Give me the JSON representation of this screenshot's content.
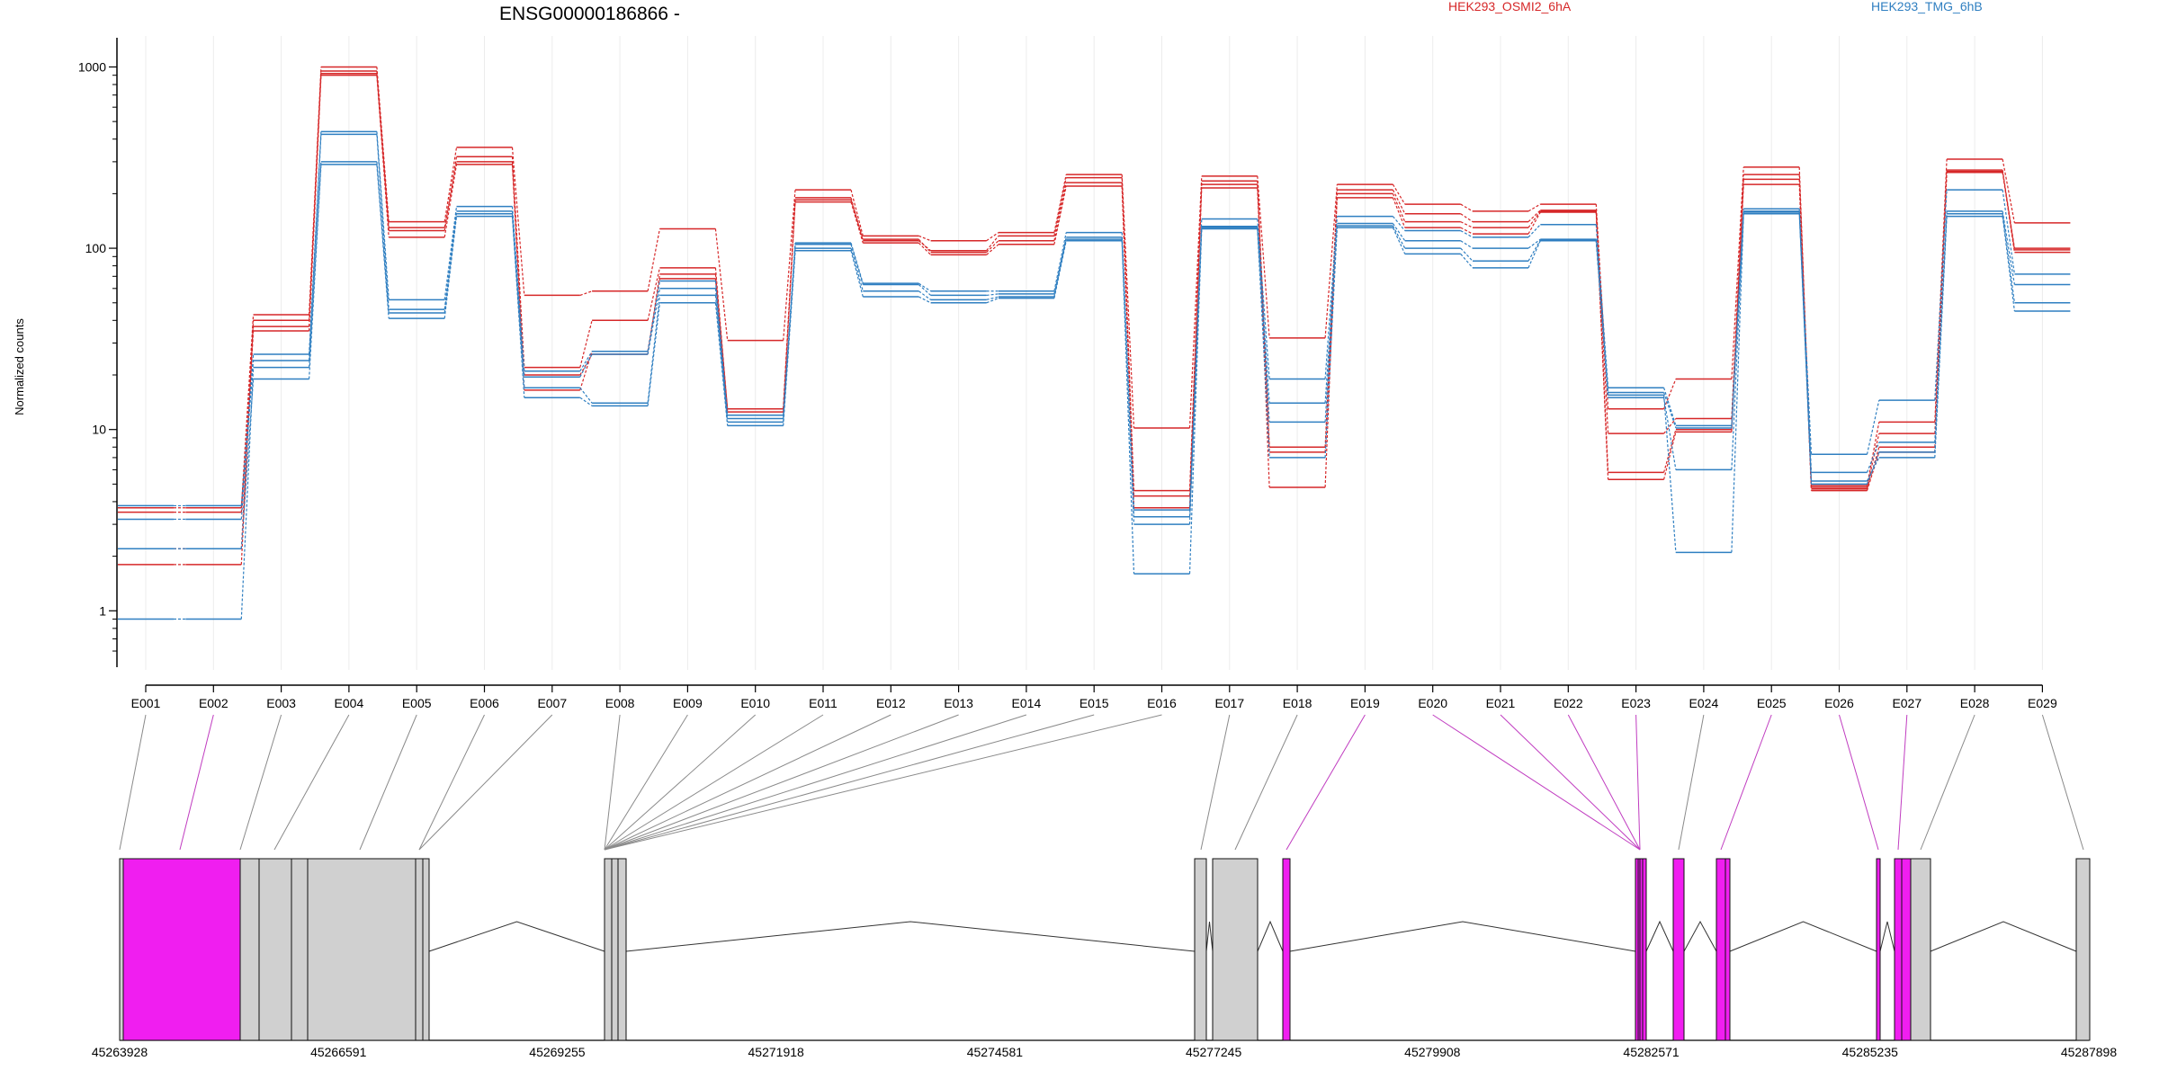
{
  "chart_data": {
    "type": "line",
    "title": "ENSG00000186866 -",
    "ylabel": "Normalized counts",
    "yscale": "log",
    "ylim": [
      0.5,
      1400
    ],
    "yticks": [
      "1",
      "10",
      "100",
      "1000"
    ],
    "grid": "vertical",
    "categories": [
      "E001",
      "E002",
      "E003",
      "E004",
      "E005",
      "E006",
      "E007",
      "E008",
      "E009",
      "E010",
      "E011",
      "E012",
      "E013",
      "E014",
      "E015",
      "E016",
      "E017",
      "E018",
      "E019",
      "E020",
      "E021",
      "E022",
      "E023",
      "E024",
      "E025",
      "E026",
      "E027",
      "E028",
      "E029"
    ],
    "legend": [
      {
        "label": "HEK293_OSMI2_6hA",
        "color": "#d62728"
      },
      {
        "label": "HEK293_TMG_6hB",
        "color": "#2f7fc1"
      }
    ],
    "series": [
      {
        "group": 0,
        "values": [
          3.7,
          3.7,
          43,
          1000,
          140,
          360,
          55,
          58,
          128,
          31,
          210,
          117,
          110,
          122,
          255,
          10.2,
          250,
          32,
          225,
          175,
          160,
          175,
          13,
          19,
          280,
          4.9,
          11,
          310,
          138
        ]
      },
      {
        "group": 0,
        "values": [
          3.5,
          3.5,
          37,
          950,
          125,
          320,
          22,
          40,
          78,
          13,
          190,
          110,
          97,
          117,
          245,
          4.6,
          235,
          8,
          210,
          155,
          140,
          162,
          9.5,
          11.5,
          255,
          4.8,
          9.5,
          265,
          100
        ]
      },
      {
        "group": 0,
        "values": [
          2.2,
          2.2,
          35,
          900,
          115,
          290,
          16.5,
          27,
          68,
          12.5,
          180,
          107,
          92,
          105,
          220,
          3.7,
          215,
          7.5,
          190,
          130,
          120,
          158,
          5.3,
          9.7,
          225,
          4.6,
          7.5,
          262,
          95
        ]
      },
      {
        "group": 0,
        "values": [
          1.8,
          1.8,
          40,
          920,
          130,
          300,
          20,
          26,
          72,
          13,
          185,
          112,
          95,
          110,
          230,
          4.3,
          225,
          4.8,
          200,
          140,
          130,
          160,
          5.8,
          10,
          240,
          4.7,
          8,
          270,
          98
        ]
      },
      {
        "group": 1,
        "values": [
          3.8,
          3.8,
          26,
          440,
          52,
          170,
          21,
          27,
          66,
          12,
          107,
          64,
          58,
          58,
          122,
          3.6,
          145,
          19,
          150,
          125,
          115,
          135,
          17,
          10.5,
          165,
          7.3,
          14.5,
          210,
          72
        ]
      },
      {
        "group": 1,
        "values": [
          3.2,
          3.2,
          24,
          425,
          46,
          160,
          19.5,
          26,
          60,
          11.5,
          105,
          63,
          55,
          56,
          115,
          3.3,
          132,
          14,
          137,
          110,
          100,
          112,
          16,
          10.2,
          160,
          5.8,
          8.5,
          160,
          63
        ]
      },
      {
        "group": 1,
        "values": [
          2.2,
          2.2,
          19,
          290,
          41,
          150,
          15,
          13.5,
          50,
          10.5,
          97,
          54,
          50,
          53,
          110,
          3,
          128,
          7,
          130,
          93,
          78,
          110,
          15.5,
          2.1,
          155,
          5.2,
          7,
          150,
          45
        ]
      },
      {
        "group": 1,
        "values": [
          0.9,
          0.9,
          22,
          300,
          44,
          155,
          17,
          14,
          55,
          11,
          100,
          58,
          52,
          54,
          112,
          1.6,
          130,
          11,
          133,
          100,
          85,
          111,
          15,
          6,
          158,
          5,
          7.5,
          155,
          50
        ]
      }
    ]
  },
  "gene_model": {
    "genomic_ticks": [
      "45263928",
      "45266591",
      "45269255",
      "45271918",
      "45274581",
      "45277245",
      "45279908",
      "45282571",
      "45285235",
      "45287898"
    ],
    "colors": {
      "highlight": "#f01ef0",
      "exon": "#d0d0d0",
      "line": "#000000",
      "connector": "#8a8a8a",
      "connector_hl": "#c03cc0"
    },
    "exons": [
      {
        "id": "E001",
        "hl": false
      },
      {
        "id": "E002",
        "hl": true
      },
      {
        "id": "E003",
        "hl": false
      },
      {
        "id": "E004",
        "hl": false
      },
      {
        "id": "E005",
        "hl": false
      },
      {
        "id": "E006",
        "hl": false
      },
      {
        "id": "E007",
        "hl": false
      },
      {
        "id": "E008",
        "hl": false
      },
      {
        "id": "E009",
        "hl": false
      },
      {
        "id": "E010",
        "hl": false
      },
      {
        "id": "E011",
        "hl": false
      },
      {
        "id": "E012",
        "hl": false
      },
      {
        "id": "E013",
        "hl": false
      },
      {
        "id": "E014",
        "hl": false
      },
      {
        "id": "E015",
        "hl": false
      },
      {
        "id": "E016",
        "hl": false
      },
      {
        "id": "E017",
        "hl": false
      },
      {
        "id": "E018",
        "hl": false
      },
      {
        "id": "E019",
        "hl": true
      },
      {
        "id": "E020",
        "hl": true
      },
      {
        "id": "E021",
        "hl": true
      },
      {
        "id": "E022",
        "hl": true
      },
      {
        "id": "E023",
        "hl": true
      },
      {
        "id": "E024",
        "hl": false
      },
      {
        "id": "E025",
        "hl": true
      },
      {
        "id": "E026",
        "hl": true
      },
      {
        "id": "E027",
        "hl": true
      },
      {
        "id": "E028",
        "hl": false
      },
      {
        "id": "E029",
        "hl": false
      }
    ]
  }
}
